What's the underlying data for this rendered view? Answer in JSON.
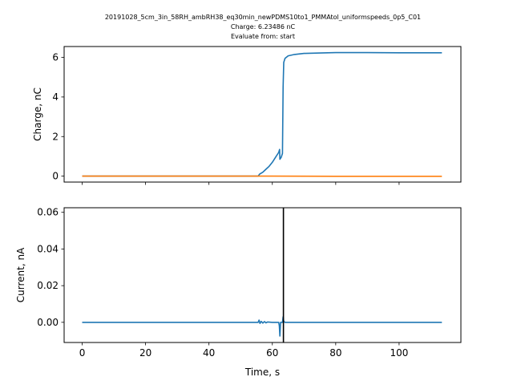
{
  "figure": {
    "title_lines": [
      "20191028_5cm_3in_58RH_ambRH38_eq30min_newPDMS10to1_PMMAtol_uniformspeeds_0p5_C01",
      "Charge: 6.23486 nC",
      "Evaluate from: start"
    ],
    "xlabel": "Time, s"
  },
  "chart_data": [
    {
      "type": "line",
      "title": "",
      "xlabel": "",
      "ylabel": "Charge, nC",
      "xlim": [
        -5.7,
        119.5
      ],
      "ylim": [
        -0.3,
        6.55
      ],
      "xticks": [
        0,
        20,
        40,
        60,
        80,
        100
      ],
      "show_xtick_labels": false,
      "yticks": [
        0,
        2,
        4,
        6
      ],
      "ytick_labels": [
        "0",
        "2",
        "4",
        "6"
      ],
      "grid": false,
      "series": [
        {
          "color": "#1f77b4",
          "points": [
            [
              0,
              0
            ],
            [
              20,
              0
            ],
            [
              40,
              0
            ],
            [
              55.5,
              0
            ],
            [
              56,
              0.1
            ],
            [
              57,
              0.2
            ],
            [
              58,
              0.35
            ],
            [
              59,
              0.5
            ],
            [
              60,
              0.7
            ],
            [
              61,
              0.95
            ],
            [
              62,
              1.2
            ],
            [
              62.3,
              1.35
            ],
            [
              62.4,
              0.85
            ],
            [
              62.8,
              0.95
            ],
            [
              63.2,
              1.15
            ],
            [
              63.4,
              4.5
            ],
            [
              63.6,
              5.75
            ],
            [
              64,
              5.95
            ],
            [
              65,
              6.08
            ],
            [
              67,
              6.15
            ],
            [
              70,
              6.2
            ],
            [
              75,
              6.22
            ],
            [
              80,
              6.24
            ],
            [
              90,
              6.24
            ],
            [
              100,
              6.235
            ],
            [
              113.5,
              6.235
            ]
          ]
        },
        {
          "color": "#ff7f0e",
          "points": [
            [
              0,
              0
            ],
            [
              20,
              0
            ],
            [
              40,
              0
            ],
            [
              60,
              0
            ],
            [
              80,
              -0.01
            ],
            [
              100,
              -0.01
            ],
            [
              113.5,
              -0.01
            ]
          ]
        }
      ]
    },
    {
      "type": "line",
      "title": "",
      "xlabel": "Time, s",
      "ylabel": "Current, nA",
      "xlim": [
        -5.7,
        119.5
      ],
      "ylim": [
        -0.011,
        0.0625
      ],
      "xticks": [
        0,
        20,
        40,
        60,
        80,
        100
      ],
      "xtick_labels": [
        "0",
        "20",
        "40",
        "60",
        "80",
        "100"
      ],
      "show_xtick_labels": true,
      "yticks": [
        0,
        0.02,
        0.04,
        0.06
      ],
      "ytick_labels": [
        "0.00",
        "0.02",
        "0.04",
        "0.06"
      ],
      "grid": false,
      "vline_x": 63.5,
      "series": [
        {
          "color": "#1f77b4",
          "points": [
            [
              0,
              0
            ],
            [
              20,
              0
            ],
            [
              40,
              0
            ],
            [
              55.5,
              0
            ],
            [
              55.8,
              0.0012
            ],
            [
              56.1,
              -0.0006
            ],
            [
              56.5,
              0.0005
            ],
            [
              57,
              -0.0004
            ],
            [
              57.5,
              0.0004
            ],
            [
              58,
              -0.0003
            ],
            [
              58.5,
              0.0002
            ],
            [
              60,
              0
            ],
            [
              62,
              0
            ],
            [
              62.2,
              -0.002
            ],
            [
              62.4,
              -0.0075
            ],
            [
              62.6,
              0.0
            ],
            [
              63.2,
              0.0
            ],
            [
              63.4,
              0.003
            ],
            [
              63.6,
              0.0005
            ],
            [
              64,
              0
            ],
            [
              80,
              0
            ],
            [
              100,
              0
            ],
            [
              113.5,
              0
            ]
          ]
        }
      ]
    }
  ]
}
